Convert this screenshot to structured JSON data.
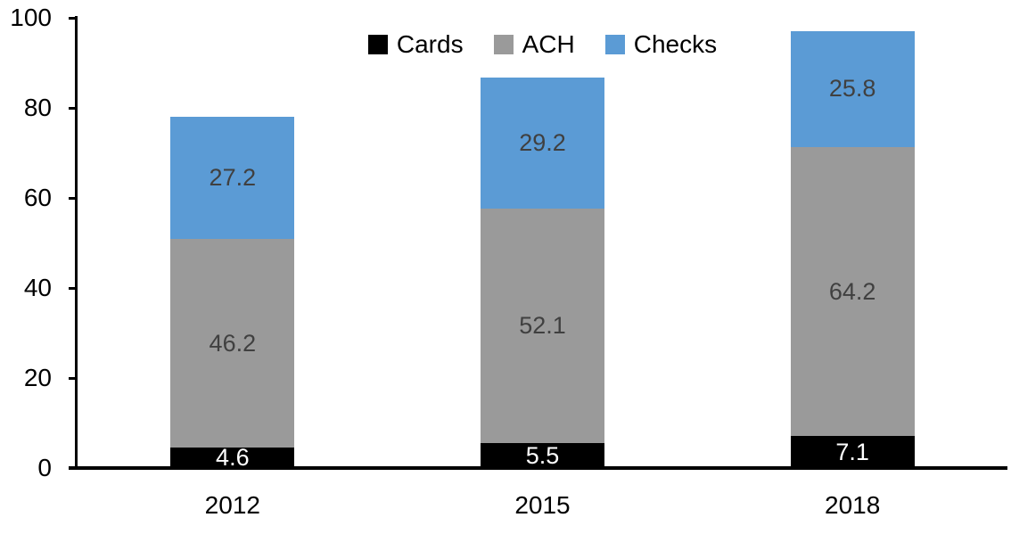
{
  "chart_data": {
    "type": "bar",
    "stacked": true,
    "title": "",
    "categories": [
      "2012",
      "2015",
      "2018"
    ],
    "series": [
      {
        "name": "Cards",
        "values": [
          4.6,
          5.5,
          7.1
        ],
        "color": "#000000",
        "label_color": "#ffffff"
      },
      {
        "name": "ACH",
        "values": [
          46.2,
          52.1,
          64.2
        ],
        "color": "#9a9a9a",
        "label_color": "#404040"
      },
      {
        "name": "Checks",
        "values": [
          27.2,
          29.2,
          25.8
        ],
        "color": "#5b9bd5",
        "label_color": "#404040"
      }
    ],
    "totals": [
      78.0,
      86.8,
      97.1
    ],
    "ylim": [
      0,
      100
    ],
    "yticks": [
      0,
      20,
      40,
      60,
      80,
      100
    ],
    "xlabel": "",
    "ylabel": "",
    "grid": false,
    "legend_position": "top-center",
    "data_labels": true,
    "axis_color": "#000000",
    "background_color": "#ffffff"
  }
}
